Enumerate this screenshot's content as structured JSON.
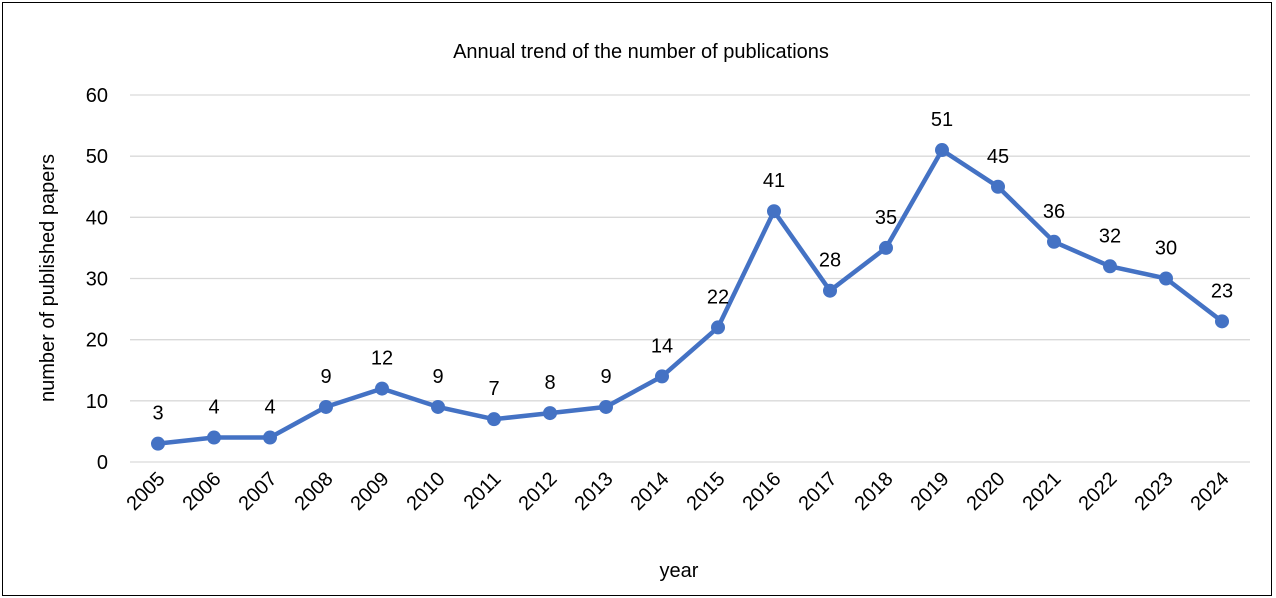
{
  "chart_data": {
    "type": "line",
    "title": "Annual trend of the number of publications",
    "xlabel": "year",
    "ylabel": "number of published papers",
    "ylim": [
      0,
      60
    ],
    "yticks": [
      0,
      10,
      20,
      30,
      40,
      50,
      60
    ],
    "grid": true,
    "legend": "none",
    "categories": [
      "2005",
      "2006",
      "2007",
      "2008",
      "2009",
      "2010",
      "2011",
      "2012",
      "2013",
      "2014",
      "2015",
      "2016",
      "2017",
      "2018",
      "2019",
      "2020",
      "2021",
      "2022",
      "2023",
      "2024"
    ],
    "series": [
      {
        "values": [
          3,
          4,
          4,
          9,
          12,
          9,
          7,
          8,
          9,
          14,
          22,
          41,
          28,
          35,
          51,
          45,
          36,
          32,
          30,
          23
        ],
        "color": "#4472c4"
      }
    ]
  }
}
